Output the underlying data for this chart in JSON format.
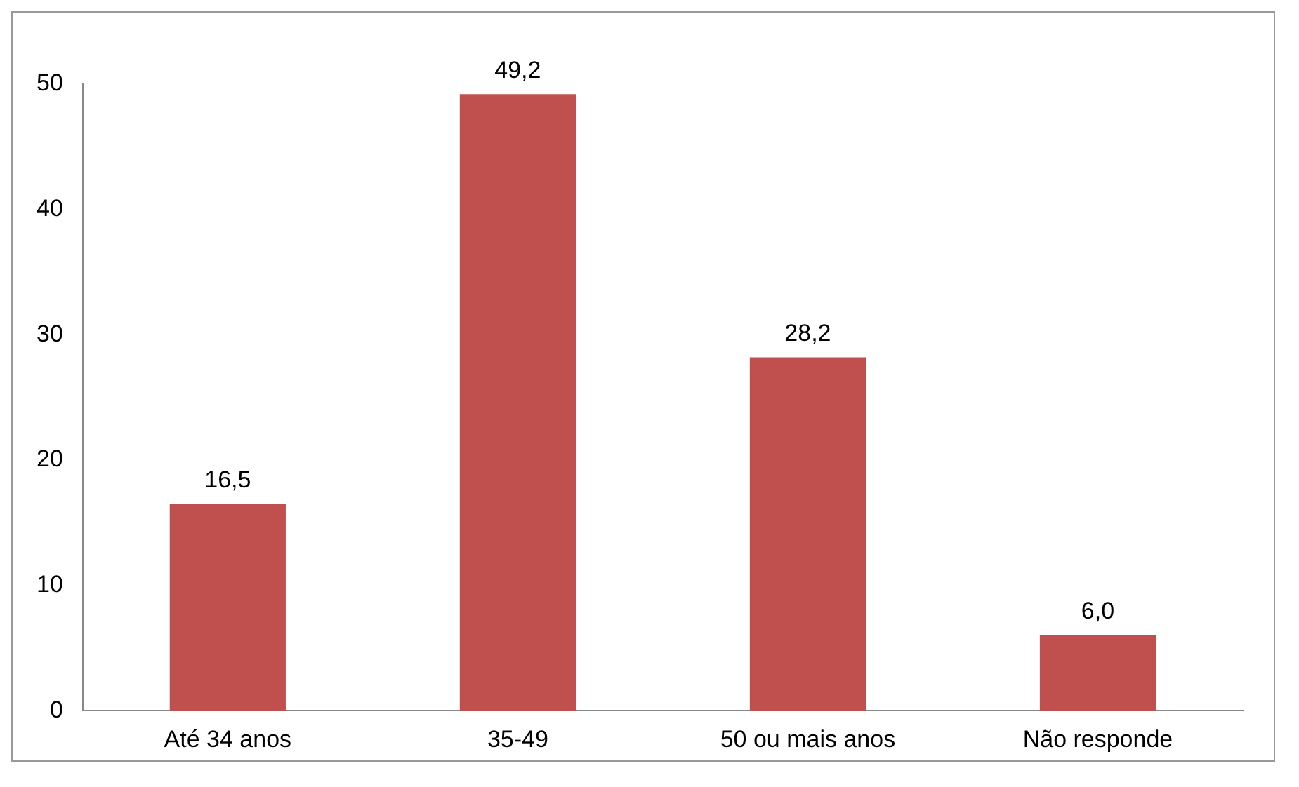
{
  "chart_data": {
    "type": "bar",
    "categories": [
      "Até 34 anos",
      "35-49",
      "50 ou mais anos",
      "Não responde"
    ],
    "values": [
      16.5,
      49.2,
      28.2,
      6.0
    ],
    "color": "#c0504d",
    "value_labels": [
      "16,5",
      "49,2",
      "28,2",
      "6,0"
    ],
    "ylim": [
      0,
      50
    ],
    "yticks": [
      0,
      10,
      20,
      30,
      40,
      50
    ],
    "grid": false,
    "legend": false
  }
}
